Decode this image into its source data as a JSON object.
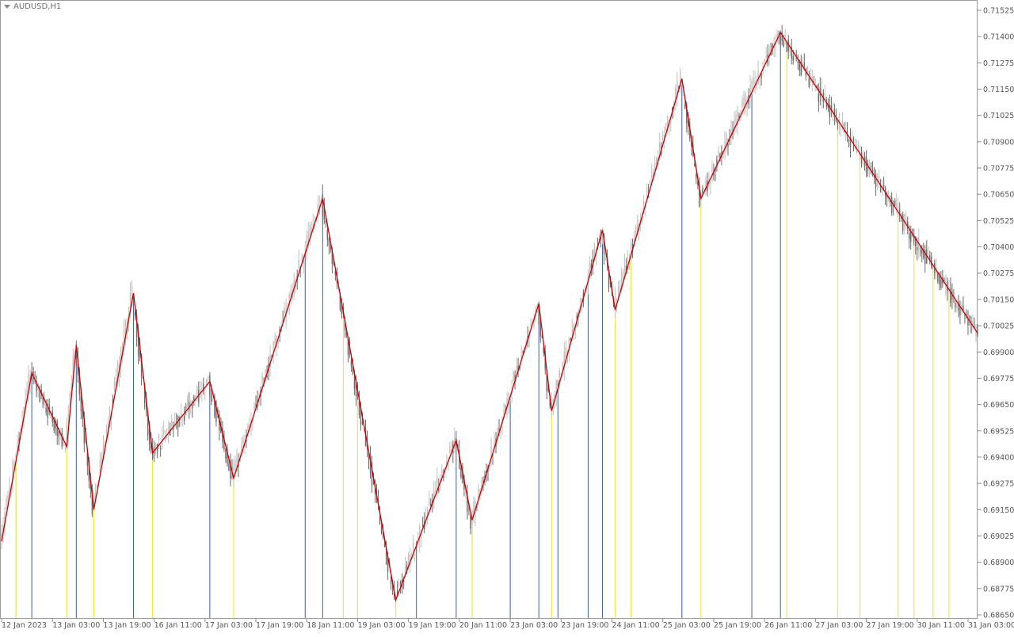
{
  "window": {
    "symbol_title": "AUDUSD,H1"
  },
  "colors": {
    "background": "#ffffff",
    "frame": "#9a9a9a",
    "candle_bull": "#c2c2c2",
    "candle_bear": "#6b6b6b",
    "zigzag": "#cc0000",
    "marker_high": "#3a5fa8",
    "marker_low": "#f5e63a",
    "axis_text": "#555555"
  },
  "chart_data": {
    "type": "candlestick",
    "symbol": "AUDUSD",
    "timeframe": "H1",
    "ylim": [
      0.6865,
      0.71525
    ],
    "xlim": [
      0,
      614
    ],
    "y_ticks": [
      "0.71525",
      "0.71400",
      "0.71275",
      "0.71150",
      "0.71025",
      "0.70900",
      "0.70775",
      "0.70650",
      "0.70525",
      "0.70400",
      "0.70275",
      "0.70150",
      "0.70025",
      "0.69900",
      "0.69775",
      "0.69650",
      "0.69525",
      "0.69400",
      "0.69275",
      "0.69150",
      "0.69025",
      "0.68900",
      "0.68775",
      "0.68650"
    ],
    "x_ticks": [
      {
        "bar": 0,
        "label": "12 Jan 2023"
      },
      {
        "bar": 32,
        "label": "13 Jan 03:00"
      },
      {
        "bar": 64,
        "label": "13 Jan 19:00"
      },
      {
        "bar": 96,
        "label": "16 Jan 11:00"
      },
      {
        "bar": 128,
        "label": "17 Jan 03:00"
      },
      {
        "bar": 160,
        "label": "17 Jan 19:00"
      },
      {
        "bar": 192,
        "label": "18 Jan 11:00"
      },
      {
        "bar": 224,
        "label": "19 Jan 03:00"
      },
      {
        "bar": 256,
        "label": "19 Jan 19:00"
      },
      {
        "bar": 288,
        "label": "20 Jan 11:00"
      },
      {
        "bar": 320,
        "label": "23 Jan 03:00"
      },
      {
        "bar": 352,
        "label": "23 Jan 19:00"
      },
      {
        "bar": 384,
        "label": "24 Jan 11:00"
      },
      {
        "bar": 416,
        "label": "25 Jan 03:00"
      },
      {
        "bar": 448,
        "label": "25 Jan 19:00"
      },
      {
        "bar": 480,
        "label": "26 Jan 11:00"
      },
      {
        "bar": 512,
        "label": "27 Jan 03:00"
      },
      {
        "bar": 544,
        "label": "27 Jan 19:00"
      },
      {
        "bar": 576,
        "label": "30 Jan 11:00"
      },
      {
        "bar": 608,
        "label": "31 Jan 03:00"
      }
    ],
    "zigzag": [
      [
        0,
        0.69
      ],
      [
        19,
        0.698
      ],
      [
        41,
        0.6945
      ],
      [
        47,
        0.6993
      ],
      [
        58,
        0.6915
      ],
      [
        83,
        0.7018
      ],
      [
        95,
        0.6942
      ],
      [
        131,
        0.6976
      ],
      [
        146,
        0.693
      ],
      [
        202,
        0.7063
      ],
      [
        248,
        0.6872
      ],
      [
        286,
        0.6948
      ],
      [
        296,
        0.691
      ],
      [
        338,
        0.7013
      ],
      [
        346,
        0.6962
      ],
      [
        378,
        0.7048
      ],
      [
        386,
        0.701
      ],
      [
        428,
        0.712
      ],
      [
        440,
        0.7063
      ],
      [
        490,
        0.7142
      ],
      [
        614,
        0.6999
      ]
    ],
    "markers_high": [
      9,
      19,
      47,
      83,
      131,
      191,
      202,
      261,
      286,
      320,
      338,
      350,
      369,
      378,
      396,
      428,
      472,
      490
    ],
    "markers_low": [
      9,
      41,
      58,
      95,
      146,
      215,
      224,
      248,
      296,
      346,
      386,
      396,
      440,
      494,
      526,
      540,
      564,
      574,
      586,
      596
    ],
    "candle_seed": 20230112
  }
}
